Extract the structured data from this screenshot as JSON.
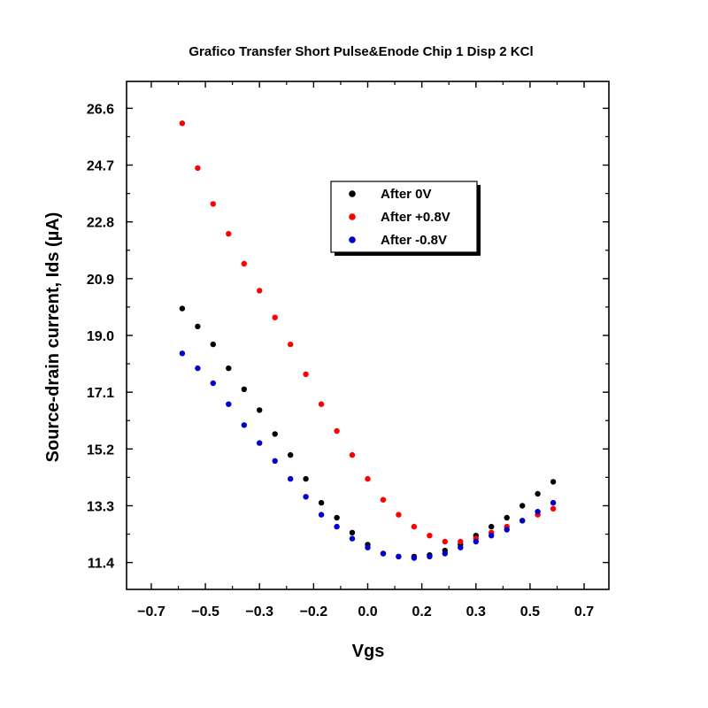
{
  "chart_data": {
    "type": "scatter",
    "title": "Grafico Transfer Short Pulse&Enode Chip 1 Disp 2 KCl",
    "xlabel": "Vgs",
    "ylabel": "Source-drain current, Ids (µA)",
    "xlim": [
      -0.78,
      0.78
    ],
    "ylim": [
      10.5,
      27.5
    ],
    "x_ticks": [
      "−0.7",
      "−0.5",
      "−0.3",
      "−0.2",
      "0.0",
      "0.2",
      "0.3",
      "0.5",
      "0.7"
    ],
    "x_tick_values": [
      -0.7,
      -0.525,
      -0.35,
      -0.175,
      0.0,
      0.175,
      0.35,
      0.525,
      0.7
    ],
    "y_ticks": [
      "11.4",
      "13.3",
      "15.2",
      "17.1",
      "19.0",
      "20.9",
      "22.8",
      "24.7",
      "26.6"
    ],
    "y_tick_values": [
      11.4,
      13.3,
      15.2,
      17.1,
      19.0,
      20.9,
      22.8,
      24.7,
      26.6
    ],
    "grid": false,
    "legend_position": "top-right",
    "series": [
      {
        "name": "After 0V",
        "color": "#000000",
        "x": [
          -0.6,
          -0.55,
          -0.5,
          -0.45,
          -0.4,
          -0.35,
          -0.3,
          -0.25,
          -0.2,
          -0.15,
          -0.1,
          -0.05,
          0.0,
          0.05,
          0.1,
          0.15,
          0.2,
          0.25,
          0.3,
          0.35,
          0.4,
          0.45,
          0.5,
          0.55,
          0.6
        ],
        "y": [
          19.9,
          19.3,
          18.7,
          17.9,
          17.2,
          16.5,
          15.7,
          15.0,
          14.2,
          13.4,
          12.9,
          12.4,
          12.0,
          11.7,
          11.6,
          11.6,
          11.65,
          11.8,
          12.0,
          12.3,
          12.6,
          12.9,
          13.3,
          13.7,
          14.1
        ]
      },
      {
        "name": "After +0.8V",
        "color": "#ff0000",
        "x": [
          -0.6,
          -0.55,
          -0.5,
          -0.45,
          -0.4,
          -0.35,
          -0.3,
          -0.25,
          -0.2,
          -0.15,
          -0.1,
          -0.05,
          0.0,
          0.05,
          0.1,
          0.15,
          0.2,
          0.25,
          0.3,
          0.35,
          0.4,
          0.45,
          0.5,
          0.55,
          0.6
        ],
        "y": [
          26.1,
          24.6,
          23.4,
          22.4,
          21.4,
          20.5,
          19.6,
          18.7,
          17.7,
          16.7,
          15.8,
          15.0,
          14.2,
          13.5,
          13.0,
          12.6,
          12.3,
          12.1,
          12.1,
          12.2,
          12.4,
          12.6,
          12.8,
          13.0,
          13.2
        ]
      },
      {
        "name": "After -0.8V",
        "color": "#0000cc",
        "x": [
          -0.6,
          -0.55,
          -0.5,
          -0.45,
          -0.4,
          -0.35,
          -0.3,
          -0.25,
          -0.2,
          -0.15,
          -0.1,
          -0.05,
          0.0,
          0.05,
          0.1,
          0.15,
          0.2,
          0.25,
          0.3,
          0.35,
          0.4,
          0.45,
          0.5,
          0.55,
          0.6
        ],
        "y": [
          18.4,
          17.9,
          17.4,
          16.7,
          16.0,
          15.4,
          14.8,
          14.2,
          13.6,
          13.0,
          12.6,
          12.2,
          11.9,
          11.7,
          11.6,
          11.55,
          11.6,
          11.7,
          11.9,
          12.1,
          12.3,
          12.5,
          12.8,
          13.1,
          13.4
        ]
      }
    ]
  }
}
